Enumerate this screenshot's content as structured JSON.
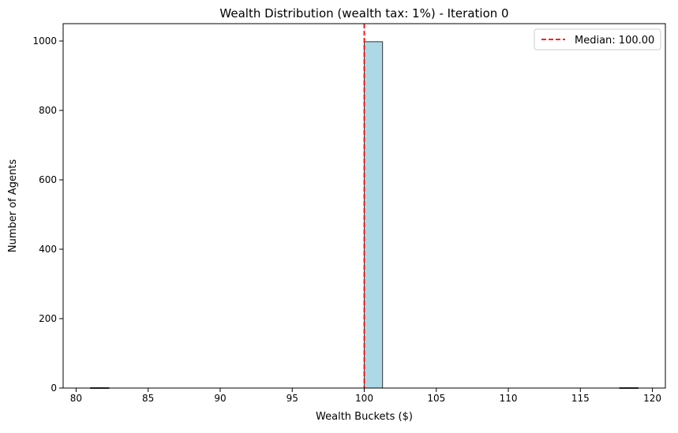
{
  "chart_data": {
    "type": "bar",
    "title": "Wealth Distribution (wealth tax: 1%) - Iteration 0",
    "xlabel": "Wealth Buckets ($)",
    "ylabel": "Number of Agents",
    "xlim": [
      79.1,
      120.9
    ],
    "ylim": [
      0,
      1050
    ],
    "xticks": [
      80,
      85,
      90,
      95,
      100,
      105,
      110,
      115,
      120
    ],
    "yticks": [
      0,
      200,
      400,
      600,
      800,
      1000
    ],
    "grid": false,
    "bins": [
      {
        "x0": 81.0,
        "x1": 82.27,
        "value": 1
      },
      {
        "x0": 100.0,
        "x1": 101.27,
        "value": 998
      },
      {
        "x0": 117.73,
        "x1": 119.0,
        "value": 1
      }
    ],
    "median": {
      "value": 100.0,
      "label": "Median: 100.00"
    },
    "legend": {
      "position": "top-right",
      "entries": [
        "Median: 100.00"
      ]
    },
    "colors": {
      "bar_fill": "#add8e6",
      "bar_edge": "#333333",
      "median_line": "#ff0000"
    }
  }
}
